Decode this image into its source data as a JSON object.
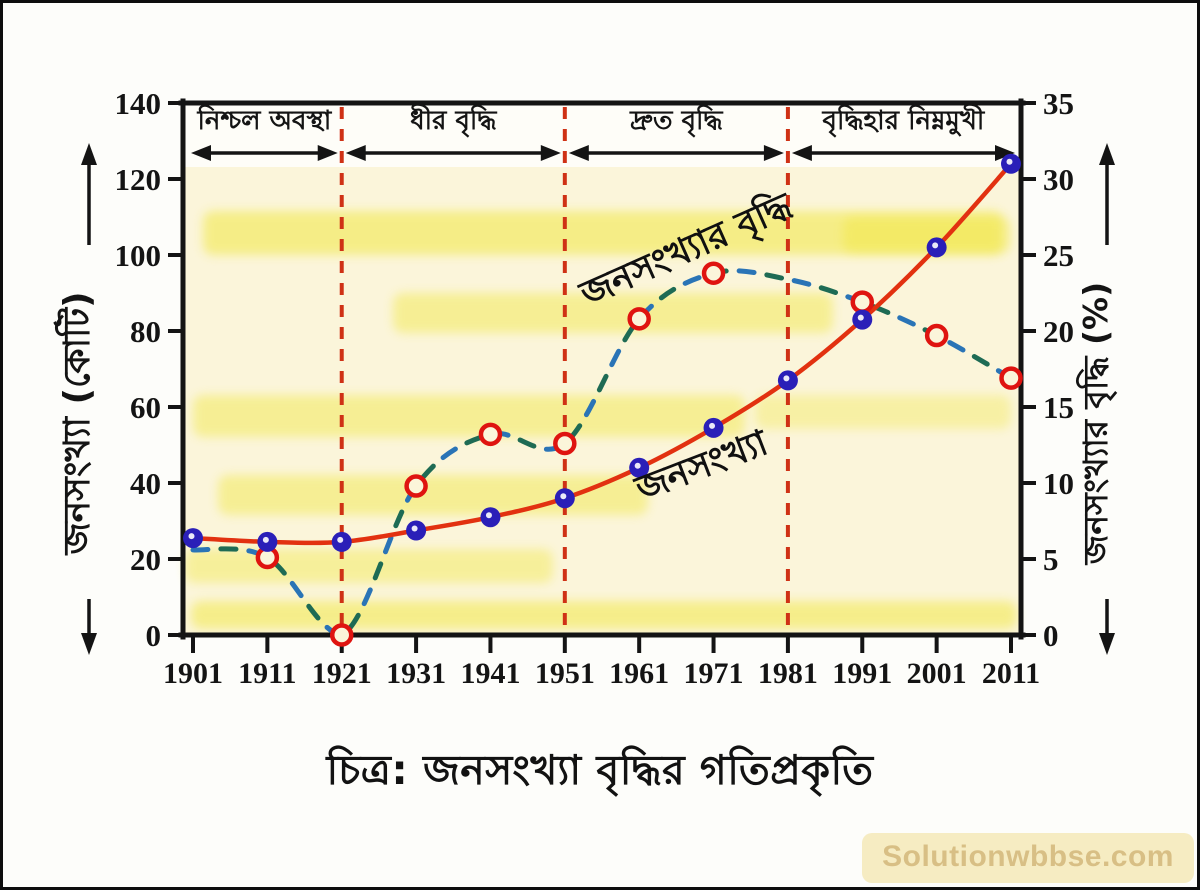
{
  "figure": {
    "caption": "চিত্র: জনসংখ্যা বৃদ্ধির গতিপ্রকৃতি",
    "watermark": "Solutionwbbse.com"
  },
  "chart_data": {
    "type": "line",
    "title": "",
    "x": [
      1901,
      1911,
      1921,
      1931,
      1941,
      1951,
      1961,
      1971,
      1981,
      1991,
      2001,
      2011
    ],
    "x_tick_labels": [
      "1901",
      "1911",
      "1921",
      "1931",
      "1941",
      "1951",
      "1961",
      "1971",
      "1981",
      "1991",
      "2001",
      "2011"
    ],
    "left_axis": {
      "label": "জনসংখ্যা (কোটি)",
      "range": [
        0,
        140
      ],
      "ticks": [
        0,
        20,
        40,
        60,
        80,
        100,
        120,
        140
      ]
    },
    "right_axis": {
      "label": "জনসংখ্যার বৃদ্ধি (%)",
      "range": [
        0,
        35
      ],
      "ticks": [
        0,
        5,
        10,
        15,
        20,
        25,
        30,
        35
      ]
    },
    "grid": false,
    "legend_position": "inline-curve-labels",
    "series": [
      {
        "name": "জনসংখ্যা",
        "axis": "left",
        "style": "solid",
        "line_color": "#e23110",
        "marker": "filled-circle",
        "marker_color": "#2a1fb8",
        "values": [
          25.5,
          24.5,
          24.5,
          27.5,
          31,
          36,
          44,
          54.5,
          67,
          83,
          102,
          124
        ],
        "marker_at": [
          true,
          true,
          true,
          true,
          true,
          true,
          true,
          true,
          true,
          true,
          true,
          true
        ],
        "curve_label": "জনসংখ্যা"
      },
      {
        "name": "জনসংখ্যার বৃদ্ধি",
        "axis": "right",
        "style": "dashed",
        "line_color": "#2a74b6",
        "line_color_alt": "#1e6b54",
        "marker": "open-circle",
        "marker_color": "#df1410",
        "values": [
          5.6,
          5.1,
          0,
          9.8,
          13.2,
          12.6,
          20.8,
          23.8,
          23.4,
          21.9,
          19.7,
          16.9
        ],
        "marker_at": [
          false,
          true,
          true,
          true,
          true,
          true,
          true,
          true,
          false,
          true,
          true,
          true
        ],
        "curve_label": "জনসংখ্যার বৃদ্ধি"
      }
    ],
    "zones": [
      {
        "label": "নিশ্চল অবস্থা",
        "from": 1901,
        "to": 1921
      },
      {
        "label": "ধীর বৃদ্ধি",
        "from": 1921,
        "to": 1951
      },
      {
        "label": "দ্রুত বৃদ্ধি",
        "from": 1951,
        "to": 1981
      },
      {
        "label": "বৃদ্ধিহার নিম্নমুখী",
        "from": 1981,
        "to": 2011
      }
    ],
    "dividers": [
      1921,
      1951,
      1981
    ]
  },
  "colors": {
    "axis": "#141414",
    "divider": "#cf3115",
    "plot_fill": "#fbf5da",
    "band_fill": "#fefdf8",
    "ghost_stain": "#f0e636",
    "population_line": "#e23110",
    "population_marker": "#2a1fb8",
    "growth_line": "#2a74b6",
    "growth_marker_ring": "#df1410",
    "watermark_bg": "#f6ecc2",
    "watermark_text": "#d8bf85"
  }
}
